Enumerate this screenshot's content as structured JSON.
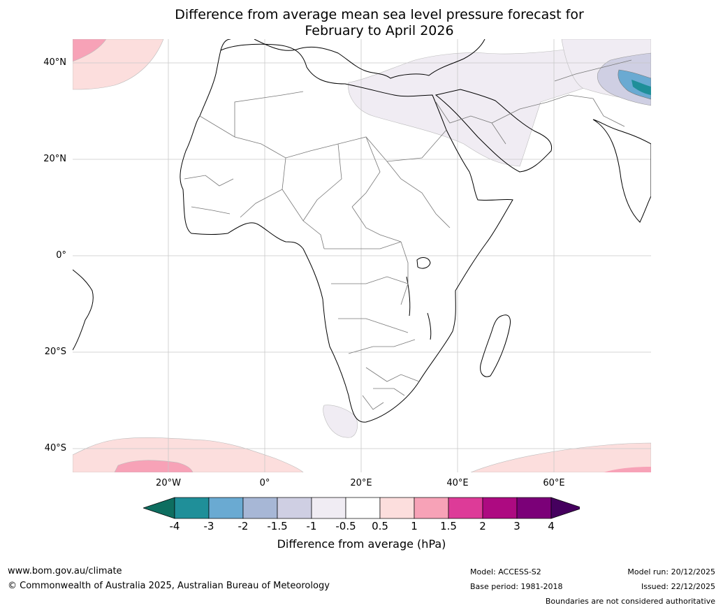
{
  "title": {
    "line1": "Difference from average mean sea level pressure forecast for",
    "line2": "February to April 2026"
  },
  "map": {
    "region": "Africa and surrounding oceans",
    "lat_labels": [
      "40°N",
      "20°N",
      "0°",
      "20°S",
      "40°S"
    ],
    "lon_labels": [
      "20°W",
      "0°",
      "20°E",
      "40°E",
      "60°E"
    ],
    "features": {
      "north_atlantic_anomaly": "0.5 to 1.5 hPa",
      "middle_east_anomaly": "-0.5 to -1 hPa",
      "himalaya_anomaly": "-1 to -4 hPa",
      "southern_ocean_anomaly": "0.5 to 1.5 hPa"
    }
  },
  "colorbar": {
    "title": "Difference from average (hPa)",
    "ticks": [
      "-4",
      "-3",
      "-2",
      "-1.5",
      "-1",
      "-0.5",
      "0.5",
      "1",
      "1.5",
      "2",
      "3",
      "4"
    ],
    "colors": [
      "#0e6e60",
      "#1f8f99",
      "#6aaad2",
      "#a7b7d6",
      "#cfcfe3",
      "#f0ecf3",
      "#ffffff",
      "#fcdedd",
      "#f7a2b7",
      "#dd3b98",
      "#ad0a81",
      "#7b0078",
      "#45005e"
    ]
  },
  "footer": {
    "website": "www.bom.gov.au/climate",
    "copyright": "© Commonwealth of Australia 2025, Australian Bureau of Meteorology",
    "model": "Model: ACCESS-S2",
    "base_period": "Base period: 1981-2018",
    "model_run": "Model run: 20/12/2025",
    "issued": "Issued: 22/12/2025",
    "disclaimer": "Boundaries are not considered authoritative"
  }
}
